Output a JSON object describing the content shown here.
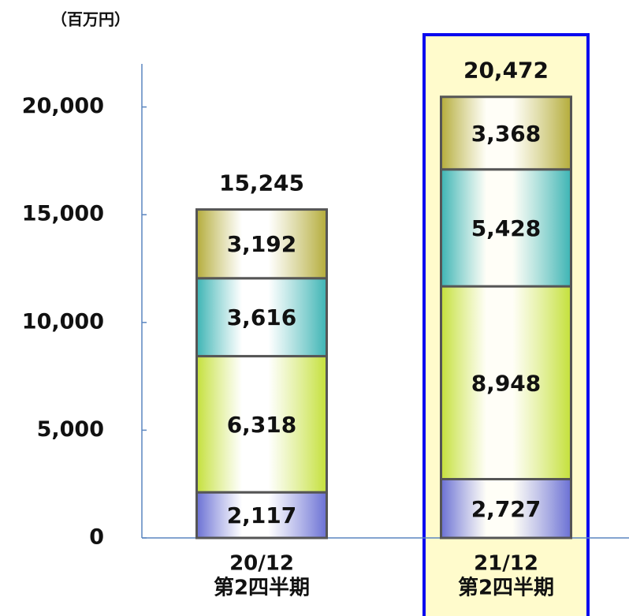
{
  "chart_data": {
    "type": "stacked_bar",
    "unit": "（百万円）",
    "categories": [
      [
        "20/12",
        "第2四半期"
      ],
      [
        "21/12",
        "第2四半期"
      ]
    ],
    "series": [
      {
        "color": "#6a70d4",
        "values": [
          2117,
          2727
        ],
        "value_labels": [
          "2,117",
          "2,727"
        ]
      },
      {
        "color": "#c4e03a",
        "values": [
          6318,
          8948
        ],
        "value_labels": [
          "6,318",
          "8,948"
        ]
      },
      {
        "color": "#3cb4b4",
        "values": [
          3616,
          5428
        ],
        "value_labels": [
          "3,616",
          "5,428"
        ]
      },
      {
        "color": "#b4ac3a",
        "values": [
          3192,
          3368
        ],
        "value_labels": [
          "3,192",
          "3,368"
        ]
      }
    ],
    "totals": [
      15245,
      20472
    ],
    "total_labels": [
      "15,245",
      "20,472"
    ],
    "highlight": 1,
    "ylim": [
      0,
      22000
    ],
    "yticks": [
      0,
      {
        "value": 5000,
        "label": "5,000"
      },
      {
        "value": 10000,
        "label": "10,000"
      },
      {
        "value": 15000,
        "label": "15,000"
      },
      {
        "value": 20000,
        "label": "20,000"
      }
    ]
  }
}
